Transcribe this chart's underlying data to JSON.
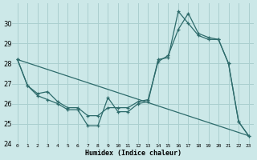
{
  "xlabel": "Humidex (Indice chaleur)",
  "background_color": "#cce8e8",
  "grid_color": "#aacfcf",
  "line_color": "#2d6b6b",
  "xlim": [
    -0.5,
    23.5
  ],
  "ylim": [
    24,
    31
  ],
  "yticks": [
    24,
    25,
    26,
    27,
    28,
    29,
    30
  ],
  "xticks": [
    0,
    1,
    2,
    3,
    4,
    5,
    6,
    7,
    8,
    9,
    10,
    11,
    12,
    13,
    14,
    15,
    16,
    17,
    18,
    19,
    20,
    21,
    22,
    23
  ],
  "line1_x": [
    0,
    1,
    2,
    3,
    4,
    5,
    6,
    7,
    8,
    9,
    10,
    11,
    12,
    13,
    14,
    15,
    16,
    17,
    18,
    19,
    20,
    21,
    22,
    23
  ],
  "line1_y": [
    28.2,
    26.9,
    26.4,
    26.2,
    26.0,
    25.7,
    25.7,
    24.9,
    24.9,
    26.3,
    25.6,
    25.6,
    26.0,
    26.1,
    28.2,
    28.3,
    30.6,
    30.0,
    29.4,
    29.2,
    29.2,
    28.0,
    25.1,
    24.4
  ],
  "line2_x": [
    0,
    1,
    2,
    3,
    4,
    5,
    6,
    7,
    8,
    9,
    10,
    11,
    12,
    13,
    14,
    15,
    16,
    17,
    18,
    19,
    20,
    21,
    22,
    23
  ],
  "line2_y": [
    28.2,
    26.9,
    26.5,
    26.6,
    26.1,
    25.8,
    25.8,
    25.4,
    25.4,
    25.8,
    25.8,
    25.8,
    26.1,
    26.2,
    28.1,
    28.4,
    29.7,
    30.5,
    29.5,
    29.3,
    29.2,
    28.0,
    25.1,
    24.4
  ],
  "line3_x": [
    0,
    23
  ],
  "line3_y": [
    28.2,
    24.4
  ]
}
